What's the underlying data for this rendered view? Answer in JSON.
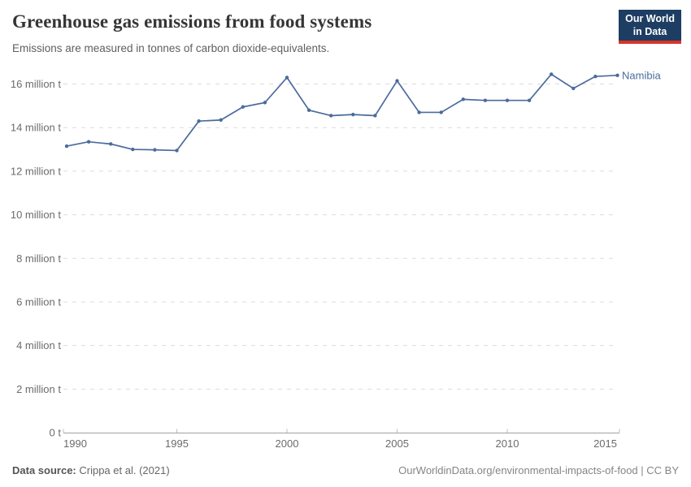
{
  "header": {
    "title": "Greenhouse gas emissions from food systems",
    "subtitle": "Emissions are measured in tonnes of carbon dioxide-equivalents.",
    "logo": {
      "line1": "Our World",
      "line2": "in Data"
    }
  },
  "colors": {
    "series_blue": "#4C6B9C",
    "grid": "#dcdcdc",
    "axis_line": "#a1a1a1",
    "axis_tick": "#bdbdbd",
    "tick_text": "#6b6b6b",
    "logo_bg": "#1d3d63",
    "logo_accent": "#d8352a"
  },
  "chart_data": {
    "type": "line",
    "title": "Greenhouse gas emissions from food systems",
    "subtitle": "Emissions are measured in tonnes of carbon dioxide-equivalents.",
    "unit": "million t",
    "x": [
      1990,
      1991,
      1992,
      1993,
      1994,
      1995,
      1996,
      1997,
      1998,
      1999,
      2000,
      2001,
      2002,
      2003,
      2004,
      2005,
      2006,
      2007,
      2008,
      2009,
      2010,
      2011,
      2012,
      2013,
      2014,
      2015
    ],
    "series": [
      {
        "name": "Namibia",
        "color": "#4C6B9C",
        "values": [
          13.15,
          13.35,
          13.25,
          13.0,
          12.98,
          12.95,
          14.3,
          14.35,
          14.95,
          15.15,
          16.3,
          14.8,
          14.55,
          14.6,
          14.55,
          16.15,
          14.7,
          14.7,
          15.3,
          15.25,
          15.25,
          15.25,
          16.45,
          15.8,
          16.35,
          16.4
        ]
      }
    ],
    "yticks": [
      {
        "value": 0,
        "label": "0 t"
      },
      {
        "value": 2,
        "label": "2 million t"
      },
      {
        "value": 4,
        "label": "4 million t"
      },
      {
        "value": 6,
        "label": "6 million t"
      },
      {
        "value": 8,
        "label": "8 million t"
      },
      {
        "value": 10,
        "label": "10 million t"
      },
      {
        "value": 12,
        "label": "12 million t"
      },
      {
        "value": 14,
        "label": "14 million t"
      },
      {
        "value": 16,
        "label": "16 million t"
      }
    ],
    "xticks": [
      1990,
      1995,
      2000,
      2005,
      2010,
      2015
    ],
    "ylim": [
      0,
      16.5
    ],
    "grid": "horizontal-dashed",
    "legend_position": "end-of-line-label"
  },
  "footer": {
    "source_label": "Data source:",
    "source_value": " Crippa et al. (2021)",
    "credit": "OurWorldinData.org/environmental-impacts-of-food | CC BY"
  }
}
